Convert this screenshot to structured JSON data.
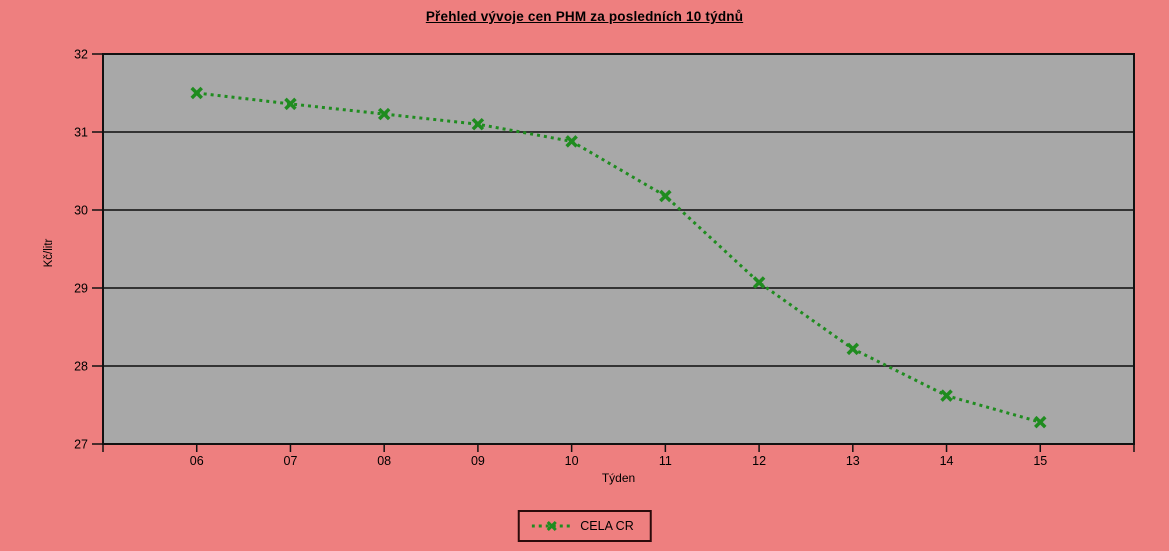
{
  "title": "Přehled vývoje cen PHM za posledních 10 týdnů",
  "colors": {
    "background": "#ee7f7f",
    "plot_background": "#a8a8a8",
    "grid": "#333333",
    "axis": "#111111",
    "text": "#000000",
    "series_line": "#1f8c1f"
  },
  "chart_data": {
    "type": "line",
    "title": "Přehled vývoje cen PHM za posledních 10 týdnů",
    "xlabel": "Týden",
    "ylabel": "Kč/litr",
    "categories": [
      "06",
      "07",
      "08",
      "09",
      "10",
      "11",
      "12",
      "13",
      "14",
      "15"
    ],
    "series": [
      {
        "name": "CELA CR",
        "values": [
          31.5,
          31.36,
          31.23,
          31.1,
          30.88,
          30.18,
          29.07,
          28.22,
          27.62,
          27.28
        ]
      }
    ],
    "ylim": [
      27,
      32
    ],
    "y_ticks": [
      27,
      28,
      29,
      30,
      31,
      32
    ],
    "grid": true,
    "line_style": "dotted",
    "marker": "x",
    "legend_position": "bottom"
  },
  "legend": {
    "items": [
      {
        "label": "CELA CR"
      }
    ]
  }
}
